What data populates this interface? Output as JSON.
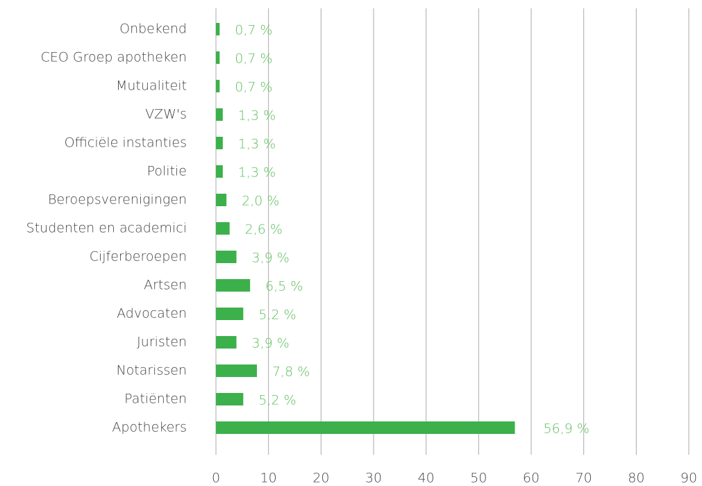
{
  "chart_data": {
    "type": "hbar",
    "categories": [
      "Onbekend",
      "CEO Groep apotheken",
      "Mutualiteit",
      "VZW's",
      "Officiële instanties",
      "Politie",
      "Beroepsverenigingen",
      "Studenten en academici",
      "Cijferberoepen",
      "Artsen",
      "Advocaten",
      "Juristen",
      "Notarissen",
      "Patiënten",
      "Apothekers"
    ],
    "values": [
      0.7,
      0.7,
      0.7,
      1.3,
      1.3,
      1.3,
      2.0,
      2.6,
      3.9,
      6.5,
      5.2,
      3.9,
      7.8,
      5.2,
      56.9
    ],
    "value_labels": [
      "0,7 %",
      "0,7 %",
      "0,7 %",
      "1,3 %",
      "1,3 %",
      "1,3 %",
      "2,0 %",
      "2,6 %",
      "3,9 %",
      "6,5 %",
      "5,2 %",
      "3,9 %",
      "7,8 %",
      "5,2 %",
      "56,9 %"
    ],
    "color": "#3cb04a",
    "xlim": [
      0,
      90
    ],
    "xticks": [
      0,
      10,
      20,
      30,
      40,
      50,
      60,
      70,
      80,
      90
    ],
    "grid": true
  }
}
